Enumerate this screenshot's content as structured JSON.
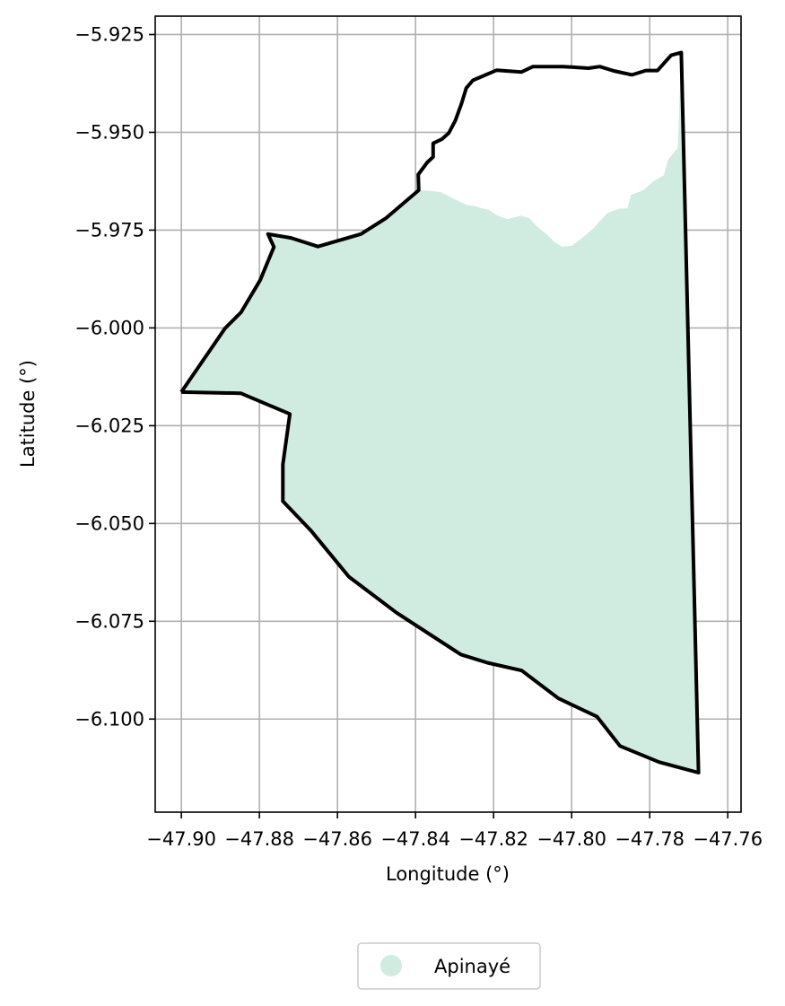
{
  "map": {
    "xlabel": "Longitude (°)",
    "ylabel": "Latitude (°)",
    "x_ticks": [
      -47.9,
      -47.88,
      -47.86,
      -47.84,
      -47.82,
      -47.8,
      -47.78,
      -47.76
    ],
    "x_tick_labels": [
      "−47.90",
      "−47.88",
      "−47.86",
      "−47.84",
      "−47.82",
      "−47.80",
      "−47.78",
      "−47.76"
    ],
    "y_ticks": [
      -5.925,
      -5.95,
      -5.975,
      -6.0,
      -6.025,
      -6.05,
      -6.075,
      -6.1
    ],
    "y_tick_labels": [
      "−5.925",
      "−5.950",
      "−5.975",
      "−6.000",
      "−6.025",
      "−6.050",
      "−6.075",
      "−6.100"
    ],
    "xlim": [
      -47.9067,
      -47.7566
    ],
    "ylim": [
      -6.1238,
      -5.9203
    ],
    "grid": true,
    "legend_placement": "bottom-center",
    "colors": {
      "fill": "#d0ebdf",
      "boundary": "#000000",
      "grid": "#b0b0b0"
    },
    "legend": [
      {
        "label": "Apinayé",
        "color": "#d0ebdf",
        "marker": "circle"
      }
    ],
    "boundary": [
      [
        -47.9,
        -6.0164
      ],
      [
        -47.8888,
        -6.0001
      ],
      [
        -47.8847,
        -5.996
      ],
      [
        -47.8798,
        -5.9878
      ],
      [
        -47.8763,
        -5.9793
      ],
      [
        -47.8778,
        -5.976
      ],
      [
        -47.8719,
        -5.977
      ],
      [
        -47.865,
        -5.9792
      ],
      [
        -47.854,
        -5.976
      ],
      [
        -47.8475,
        -5.9719
      ],
      [
        -47.8392,
        -5.9648
      ],
      [
        -47.8393,
        -5.9608
      ],
      [
        -47.837,
        -5.9577
      ],
      [
        -47.8355,
        -5.9563
      ],
      [
        -47.8355,
        -5.9528
      ],
      [
        -47.8332,
        -5.9517
      ],
      [
        -47.8315,
        -5.9502
      ],
      [
        -47.8298,
        -5.947
      ],
      [
        -47.8282,
        -5.9426
      ],
      [
        -47.827,
        -5.9387
      ],
      [
        -47.8253,
        -5.9367
      ],
      [
        -47.8192,
        -5.9341
      ],
      [
        -47.8129,
        -5.9346
      ],
      [
        -47.8099,
        -5.9332
      ],
      [
        -47.8022,
        -5.9332
      ],
      [
        -47.7957,
        -5.9336
      ],
      [
        -47.7928,
        -5.9332
      ],
      [
        -47.7892,
        -5.9343
      ],
      [
        -47.7845,
        -5.9353
      ],
      [
        -47.781,
        -5.9342
      ],
      [
        -47.778,
        -5.9342
      ],
      [
        -47.7745,
        -5.9303
      ],
      [
        -47.7719,
        -5.9296
      ],
      [
        -47.7675,
        -6.1137
      ],
      [
        -47.7776,
        -6.111
      ],
      [
        -47.7876,
        -6.1069
      ],
      [
        -47.7935,
        -6.0994
      ],
      [
        -47.8034,
        -6.0947
      ],
      [
        -47.8128,
        -6.0876
      ],
      [
        -47.8216,
        -6.0856
      ],
      [
        -47.8284,
        -6.0835
      ],
      [
        -47.8449,
        -6.0728
      ],
      [
        -47.8571,
        -6.0636
      ],
      [
        -47.8669,
        -6.0517
      ],
      [
        -47.874,
        -6.0443
      ],
      [
        -47.874,
        -6.0349
      ],
      [
        -47.8722,
        -6.022
      ],
      [
        -47.8848,
        -6.0167
      ],
      [
        -47.9,
        -6.0164
      ]
    ],
    "uncovered_area": [
      [
        -47.8392,
        -5.9648
      ],
      [
        -47.8393,
        -5.9608
      ],
      [
        -47.837,
        -5.9577
      ],
      [
        -47.8355,
        -5.9563
      ],
      [
        -47.8355,
        -5.9528
      ],
      [
        -47.8332,
        -5.9517
      ],
      [
        -47.8315,
        -5.9502
      ],
      [
        -47.8298,
        -5.947
      ],
      [
        -47.8282,
        -5.9426
      ],
      [
        -47.827,
        -5.9387
      ],
      [
        -47.8253,
        -5.9367
      ],
      [
        -47.8192,
        -5.9341
      ],
      [
        -47.8129,
        -5.9346
      ],
      [
        -47.8099,
        -5.9332
      ],
      [
        -47.8022,
        -5.9332
      ],
      [
        -47.7957,
        -5.9336
      ],
      [
        -47.7928,
        -5.9332
      ],
      [
        -47.7892,
        -5.9343
      ],
      [
        -47.7845,
        -5.9353
      ],
      [
        -47.781,
        -5.9342
      ],
      [
        -47.778,
        -5.9342
      ],
      [
        -47.7745,
        -5.9303
      ],
      [
        -47.7719,
        -5.9296
      ],
      [
        -47.7728,
        -5.954
      ],
      [
        -47.7753,
        -5.957
      ],
      [
        -47.7764,
        -5.961
      ],
      [
        -47.779,
        -5.9625
      ],
      [
        -47.7816,
        -5.9648
      ],
      [
        -47.7848,
        -5.966
      ],
      [
        -47.7857,
        -5.9695
      ],
      [
        -47.7876,
        -5.9695
      ],
      [
        -47.7908,
        -5.9706
      ],
      [
        -47.7944,
        -5.9745
      ],
      [
        -47.797,
        -5.9768
      ],
      [
        -47.8,
        -5.979
      ],
      [
        -47.8025,
        -5.9792
      ],
      [
        -47.8044,
        -5.978
      ],
      [
        -47.8065,
        -5.976
      ],
      [
        -47.809,
        -5.974
      ],
      [
        -47.8108,
        -5.972
      ],
      [
        -47.813,
        -5.9713
      ],
      [
        -47.8165,
        -5.9722
      ],
      [
        -47.8192,
        -5.9712
      ],
      [
        -47.8211,
        -5.9699
      ],
      [
        -47.8245,
        -5.969
      ],
      [
        -47.827,
        -5.9685
      ],
      [
        -47.8308,
        -5.9667
      ],
      [
        -47.8335,
        -5.9653
      ],
      [
        -47.8362,
        -5.965
      ],
      [
        -47.8392,
        -5.9648
      ]
    ]
  }
}
